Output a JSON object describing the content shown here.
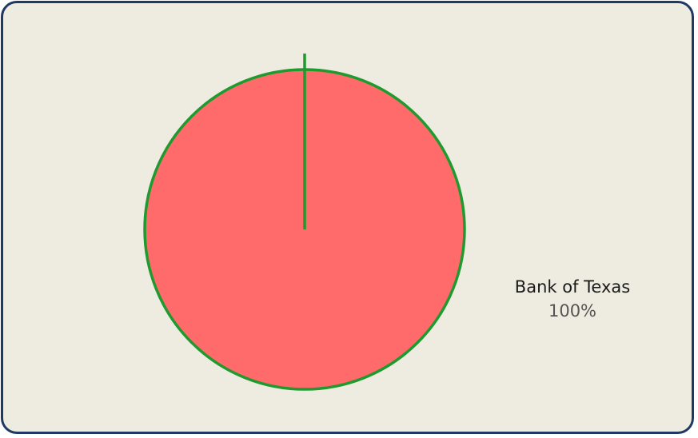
{
  "chart_data": {
    "type": "pie",
    "title": "",
    "categories": [
      "Bank of Texas"
    ],
    "values": [
      100
    ],
    "labels": [
      "100%"
    ],
    "slice_colors": [
      "#ff6b6b"
    ],
    "border_color": "#1f9a2e",
    "legend": "right"
  },
  "colors": {
    "background": "#eeebe0",
    "frame": "#1f3864"
  }
}
